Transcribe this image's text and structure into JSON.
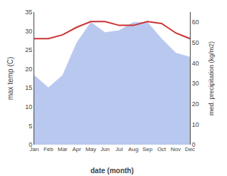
{
  "chart_data": {
    "type": "line",
    "xlabel": "date (month)",
    "ylabel": "max temp (C)",
    "y2label": "med. precipitation (kg/m2)",
    "categories": [
      "Jan",
      "Feb",
      "Mar",
      "Apr",
      "May",
      "Jun",
      "Jul",
      "Aug",
      "Sep",
      "Oct",
      "Nov",
      "Dec"
    ],
    "series": [
      {
        "type": "area",
        "axis": "y2",
        "color": "#b8c8ee",
        "values": [
          34,
          28,
          34,
          50,
          60,
          55,
          56,
          60,
          60,
          52,
          45,
          43
        ]
      },
      {
        "type": "line",
        "color": "#cc3333",
        "values": [
          28.0,
          28.0,
          29.0,
          31.0,
          32.5,
          32.5,
          31.5,
          31.5,
          32.5,
          32.0,
          29.5,
          28.0
        ]
      }
    ],
    "ylim": [
      0,
      35
    ],
    "yticks": [
      0,
      5,
      10,
      15,
      20,
      25,
      30,
      35
    ],
    "y2lim": [
      0,
      65
    ],
    "y2ticks": [
      0,
      10,
      20,
      30,
      40,
      50,
      60
    ],
    "grid": false
  }
}
